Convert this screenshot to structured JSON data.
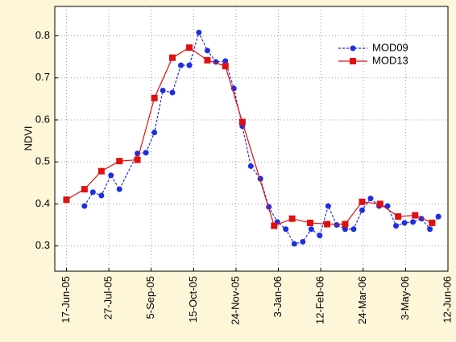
{
  "chart_data": {
    "type": "line",
    "y_label": "NDVI",
    "xlim": [
      "2005-06-06",
      "2006-06-12"
    ],
    "xticks": [
      {
        "value": "2005-06-17",
        "label": "17-Jun-05"
      },
      {
        "value": "2005-07-27",
        "label": "27-Jul-05"
      },
      {
        "value": "2005-09-05",
        "label": "5-Sep-05"
      },
      {
        "value": "2005-10-15",
        "label": "15-Oct-05"
      },
      {
        "value": "2005-11-24",
        "label": "24-Nov-05"
      },
      {
        "value": "2006-01-03",
        "label": "3-Jan-06"
      },
      {
        "value": "2006-02-12",
        "label": "12-Feb-06"
      },
      {
        "value": "2006-03-24",
        "label": "24-Mar-06"
      },
      {
        "value": "2006-05-03",
        "label": "3-May-06"
      },
      {
        "value": "2006-06-12",
        "label": "12-Jun-06"
      }
    ],
    "ylim": [
      0.24,
      0.87
    ],
    "yticks": [
      0.3,
      0.4,
      0.5,
      0.6,
      0.7,
      0.8
    ],
    "grid": true,
    "legend": "upper right",
    "series": [
      {
        "name": "MOD09",
        "color": "#1f2ee0",
        "style": "dashed",
        "marker": "circle",
        "x": [
          "2005-07-04",
          "2005-07-12",
          "2005-07-20",
          "2005-07-29",
          "2005-08-06",
          "2005-08-23",
          "2005-08-31",
          "2005-09-08",
          "2005-09-16",
          "2005-09-25",
          "2005-10-03",
          "2005-10-11",
          "2005-10-20",
          "2005-10-28",
          "2005-11-05",
          "2005-11-14",
          "2005-11-22",
          "2005-11-30",
          "2005-12-08",
          "2005-12-17",
          "2005-12-25",
          "2006-01-02",
          "2006-01-10",
          "2006-01-18",
          "2006-01-26",
          "2006-02-03",
          "2006-02-11",
          "2006-02-19",
          "2006-02-27",
          "2006-03-07",
          "2006-03-15",
          "2006-03-23",
          "2006-03-31",
          "2006-04-08",
          "2006-04-16",
          "2006-04-24",
          "2006-05-02",
          "2006-05-10",
          "2006-05-18",
          "2006-05-26",
          "2006-06-03"
        ],
        "values": [
          0.395,
          0.428,
          0.42,
          0.468,
          0.435,
          0.52,
          0.522,
          0.57,
          0.67,
          0.665,
          0.73,
          0.73,
          0.808,
          0.765,
          0.738,
          0.74,
          0.675,
          0.585,
          0.49,
          0.46,
          0.393,
          0.357,
          0.34,
          0.305,
          0.31,
          0.34,
          0.325,
          0.395,
          0.35,
          0.34,
          0.34,
          0.385,
          0.413,
          0.395,
          0.395,
          0.348,
          0.355,
          0.357,
          0.365,
          0.34,
          0.37
        ]
      },
      {
        "name": "MOD13",
        "color": "#e01010",
        "style": "solid",
        "marker": "square",
        "x": [
          "2005-06-17",
          "2005-07-04",
          "2005-07-20",
          "2005-08-06",
          "2005-08-23",
          "2005-09-08",
          "2005-09-25",
          "2005-10-11",
          "2005-10-28",
          "2005-11-14",
          "2005-11-30",
          "2005-12-30",
          "2006-01-16",
          "2006-02-02",
          "2006-02-18",
          "2006-03-07",
          "2006-03-23",
          "2006-04-09",
          "2006-04-26",
          "2006-05-12",
          "2006-05-28"
        ],
        "values": [
          0.41,
          0.435,
          0.478,
          0.502,
          0.505,
          0.652,
          0.748,
          0.772,
          0.742,
          0.728,
          0.595,
          0.348,
          0.365,
          0.355,
          0.352,
          0.352,
          0.405,
          0.4,
          0.37,
          0.373,
          0.355
        ]
      }
    ]
  }
}
